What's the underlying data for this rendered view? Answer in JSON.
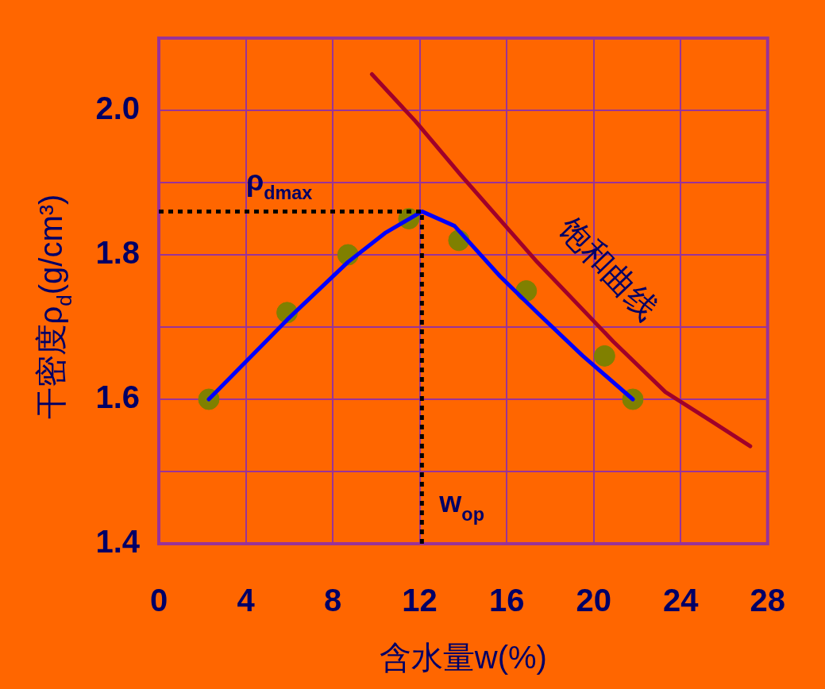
{
  "chart_data": {
    "type": "line",
    "xlabel": "含水量w(%)",
    "ylabel": "干密度ρ$_{d}$(g/cm³)",
    "xlim": [
      0,
      28
    ],
    "xticks": [
      0,
      4,
      8,
      12,
      16,
      20,
      24,
      28
    ],
    "ylim": [
      1.4,
      2.1
    ],
    "yticks": [
      1.4,
      {
        "value": 1.5,
        "label": null
      },
      1.6,
      {
        "value": 1.7,
        "label": null
      },
      1.8,
      {
        "value": 1.9,
        "label": null
      },
      {
        "value": 2.0,
        "label": "2.0"
      },
      {
        "value": 2.1,
        "label": null
      }
    ],
    "grid": true,
    "legend": false,
    "series": [
      {
        "type": "scatter",
        "color": "#808000",
        "marker": "circle",
        "x": [
          2.3,
          5.9,
          8.7,
          11.5,
          13.8,
          16.9,
          20.5,
          21.8
        ],
        "values": [
          1.6,
          1.72,
          1.8,
          1.85,
          1.82,
          1.75,
          1.66,
          1.6
        ]
      },
      {
        "color": "#0000ff",
        "marker": "none",
        "x": [
          2.3,
          5.9,
          8.7,
          10.4,
          12.1,
          13.6,
          15.7,
          17.4,
          19.5,
          21.8
        ],
        "values": [
          1.6,
          1.71,
          1.79,
          1.83,
          1.86,
          1.84,
          1.77,
          1.72,
          1.66,
          1.6
        ]
      },
      {
        "name": "饱和曲线",
        "color": "#a0002a",
        "marker": "none",
        "x": [
          9.8,
          11.8,
          13.9,
          17.4,
          20.9,
          23.3,
          25.4,
          27.2
        ],
        "values": [
          2.05,
          1.985,
          1.91,
          1.79,
          1.68,
          1.61,
          1.57,
          1.535
        ]
      }
    ],
    "ref_lines": [
      {
        "axis": "y",
        "value": 1.86,
        "label": "ρ$_{dmax}$",
        "color": "#000000",
        "line_style": "dotted"
      },
      {
        "axis": "x",
        "value": 12.1,
        "label": "w$_{op}$",
        "color": "#000000",
        "line_style": "dotted"
      }
    ]
  }
}
